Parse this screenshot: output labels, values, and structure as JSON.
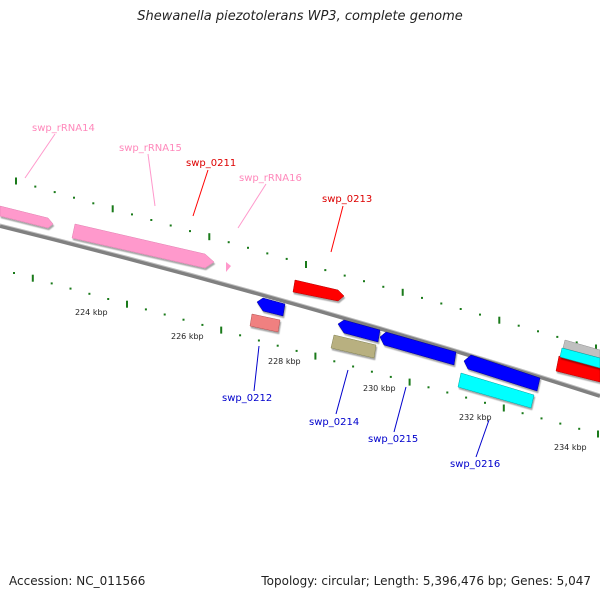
{
  "title": "Shewanella piezotolerans WP3, complete genome",
  "footer": {
    "accession": "Accession: NC_011566",
    "summary": "Topology: circular; Length: 5,396,476 bp; Genes: 5,047"
  },
  "scale_labels": [
    "224 kbp",
    "226 kbp",
    "228 kbp",
    "230 kbp",
    "232 kbp",
    "234 kbp"
  ],
  "features": [
    {
      "name": "swp_rRNA14",
      "type": "rRNA",
      "color": "#ff99cc"
    },
    {
      "name": "swp_rRNA15",
      "type": "rRNA",
      "color": "#ff99cc"
    },
    {
      "name": "swp_rRNA16",
      "type": "rRNA",
      "color": "#ff99cc"
    },
    {
      "name": "swp_0211",
      "type": "gene",
      "color": "#ff0000"
    },
    {
      "name": "swp_0213",
      "type": "gene",
      "color": "#ff0000"
    },
    {
      "name": "swp_0212",
      "type": "gene",
      "color": "#0000ff"
    },
    {
      "name": "swp_0214",
      "type": "gene",
      "color": "#0000ff"
    },
    {
      "name": "swp_0215",
      "type": "gene",
      "color": "#0000ff"
    },
    {
      "name": "swp_0216",
      "type": "gene",
      "color": "#0000ff"
    }
  ],
  "colors": {
    "backbone": "#808080",
    "ticks": "#1a7a1a",
    "rRNA": "#ff99cc",
    "red_gene": "#ff0000",
    "blue_gene": "#0000ff",
    "cyan_gene": "#00ffff",
    "salmon_gene": "#f08080",
    "olive_gene": "#b8b080",
    "gray_gene": "#c0c0c0"
  }
}
